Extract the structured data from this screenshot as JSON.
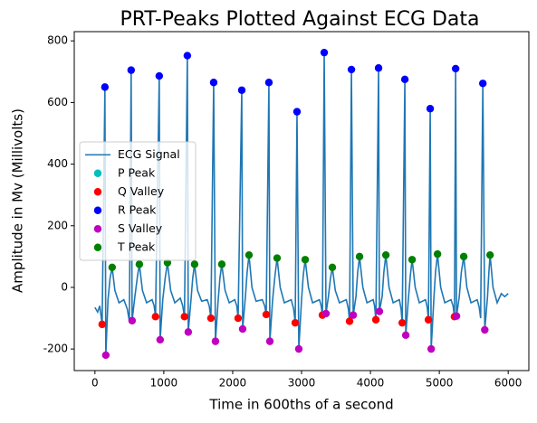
{
  "chart_data": {
    "type": "line",
    "title": "PRT-Peaks Plotted Against ECG Data",
    "x_label": "Time in 600ths of a second",
    "y_label": "Amplitude in Mv (Millivolts)",
    "xlim": [
      -300,
      6300
    ],
    "ylim": [
      -270,
      830
    ],
    "xticks": [
      0,
      1000,
      2000,
      3000,
      4000,
      5000,
      6000
    ],
    "yticks": [
      -200,
      0,
      200,
      400,
      600,
      800
    ],
    "legend": "center left",
    "series": [
      {
        "name": "ECG Signal",
        "color": "#1f77b4",
        "mode": "line",
        "x": [
          0,
          40,
          70,
          105,
          145,
          158,
          190,
          220,
          250,
          290,
          350,
          420,
          470,
          500,
          526,
          540,
          580,
          620,
          645,
          690,
          750,
          830,
          860,
          880,
          934,
          947,
          985,
          1020,
          1053,
          1100,
          1160,
          1240,
          1275,
          1300,
          1342,
          1355,
          1395,
          1420,
          1447,
          1490,
          1550,
          1630,
          1660,
          1684,
          1724,
          1750,
          1790,
          1815,
          1842,
          1890,
          1950,
          2030,
          2060,
          2079,
          2132,
          2145,
          2185,
          2210,
          2237,
          2280,
          2340,
          2430,
          2465,
          2487,
          2526,
          2540,
          2580,
          2615,
          2645,
          2690,
          2750,
          2850,
          2885,
          2908,
          2934,
          2960,
          3000,
          3025,
          3053,
          3100,
          3160,
          3260,
          3285,
          3303,
          3329,
          3355,
          3390,
          3420,
          3447,
          3490,
          3550,
          3650,
          3680,
          3697,
          3724,
          3750,
          3790,
          3815,
          3842,
          3890,
          3950,
          4040,
          4060,
          4079,
          4118,
          4130,
          4170,
          4195,
          4224,
          4270,
          4330,
          4420,
          4445,
          4461,
          4500,
          4513,
          4550,
          4580,
          4605,
          4650,
          4710,
          4800,
          4825,
          4842,
          4868,
          4882,
          4920,
          4945,
          4974,
          5020,
          5080,
          5170,
          5200,
          5220,
          5237,
          5250,
          5290,
          5320,
          5355,
          5400,
          5460,
          5550,
          5580,
          5600,
          5632,
          5660,
          5700,
          5720,
          5737,
          5780,
          5840,
          5900,
          5950,
          6000
        ],
        "values": [
          -65,
          -80,
          -60,
          -120,
          650,
          -220,
          -40,
          30,
          65,
          -10,
          -50,
          -40,
          -70,
          -110,
          705,
          -108,
          -30,
          40,
          75,
          -10,
          -50,
          -40,
          -60,
          -95,
          686,
          -170,
          -40,
          30,
          80,
          -10,
          -50,
          -35,
          -60,
          -95,
          752,
          -145,
          -40,
          30,
          75,
          -10,
          -45,
          -40,
          -60,
          -100,
          665,
          -175,
          -40,
          30,
          75,
          -10,
          -50,
          -40,
          -60,
          -100,
          640,
          -135,
          -30,
          50,
          105,
          0,
          -45,
          -40,
          -60,
          -88,
          665,
          -175,
          -40,
          40,
          95,
          0,
          -50,
          -40,
          -70,
          -115,
          570,
          -200,
          -40,
          40,
          90,
          0,
          -50,
          -40,
          -60,
          -90,
          762,
          -85,
          -30,
          30,
          65,
          -10,
          -50,
          -40,
          -70,
          -110,
          707,
          -90,
          -30,
          50,
          100,
          0,
          -50,
          -40,
          -60,
          -105,
          712,
          -78,
          -30,
          50,
          105,
          0,
          -50,
          -40,
          -70,
          -115,
          675,
          -155,
          -40,
          40,
          90,
          0,
          -50,
          -40,
          -65,
          -105,
          580,
          -200,
          -40,
          50,
          108,
          0,
          -50,
          -40,
          -60,
          -95,
          710,
          -93,
          -30,
          50,
          100,
          0,
          -50,
          -40,
          -65,
          -100,
          662,
          -138,
          -30,
          50,
          105,
          0,
          -50,
          -20,
          -30,
          -20
        ]
      },
      {
        "name": "P Peak",
        "color": "#00bfbf",
        "mode": "marker",
        "x": [],
        "values": []
      },
      {
        "name": "Q Valley",
        "color": "#ff0000",
        "mode": "marker",
        "x": [
          105,
          880,
          1300,
          1684,
          2079,
          2487,
          2908,
          3303,
          3697,
          4079,
          4461,
          4842,
          5220
        ],
        "values": [
          -120,
          -95,
          -95,
          -100,
          -100,
          -88,
          -115,
          -90,
          -110,
          -105,
          -115,
          -105,
          -95
        ]
      },
      {
        "name": "R Peak",
        "color": "#0000ff",
        "mode": "marker",
        "x": [
          145,
          526,
          934,
          1342,
          1724,
          2132,
          2526,
          2934,
          3329,
          3724,
          4118,
          4500,
          4868,
          5237,
          5632
        ],
        "values": [
          650,
          705,
          686,
          752,
          665,
          640,
          665,
          570,
          762,
          707,
          712,
          675,
          580,
          710,
          662
        ]
      },
      {
        "name": "S Valley",
        "color": "#bf00bf",
        "mode": "marker",
        "x": [
          158,
          540,
          947,
          1355,
          1750,
          2145,
          2540,
          2960,
          3355,
          3750,
          4130,
          4513,
          4882,
          5250,
          5660
        ],
        "values": [
          -220,
          -108,
          -170,
          -145,
          -175,
          -135,
          -175,
          -200,
          -85,
          -90,
          -78,
          -155,
          -200,
          -93,
          -138
        ]
      },
      {
        "name": "T Peak",
        "color": "#008000",
        "mode": "marker",
        "x": [
          250,
          645,
          1053,
          1447,
          1842,
          2237,
          2645,
          3053,
          3447,
          3842,
          4224,
          4605,
          4974,
          5355,
          5737
        ],
        "values": [
          65,
          75,
          80,
          75,
          75,
          105,
          95,
          90,
          65,
          100,
          105,
          90,
          108,
          100,
          105
        ]
      }
    ]
  }
}
